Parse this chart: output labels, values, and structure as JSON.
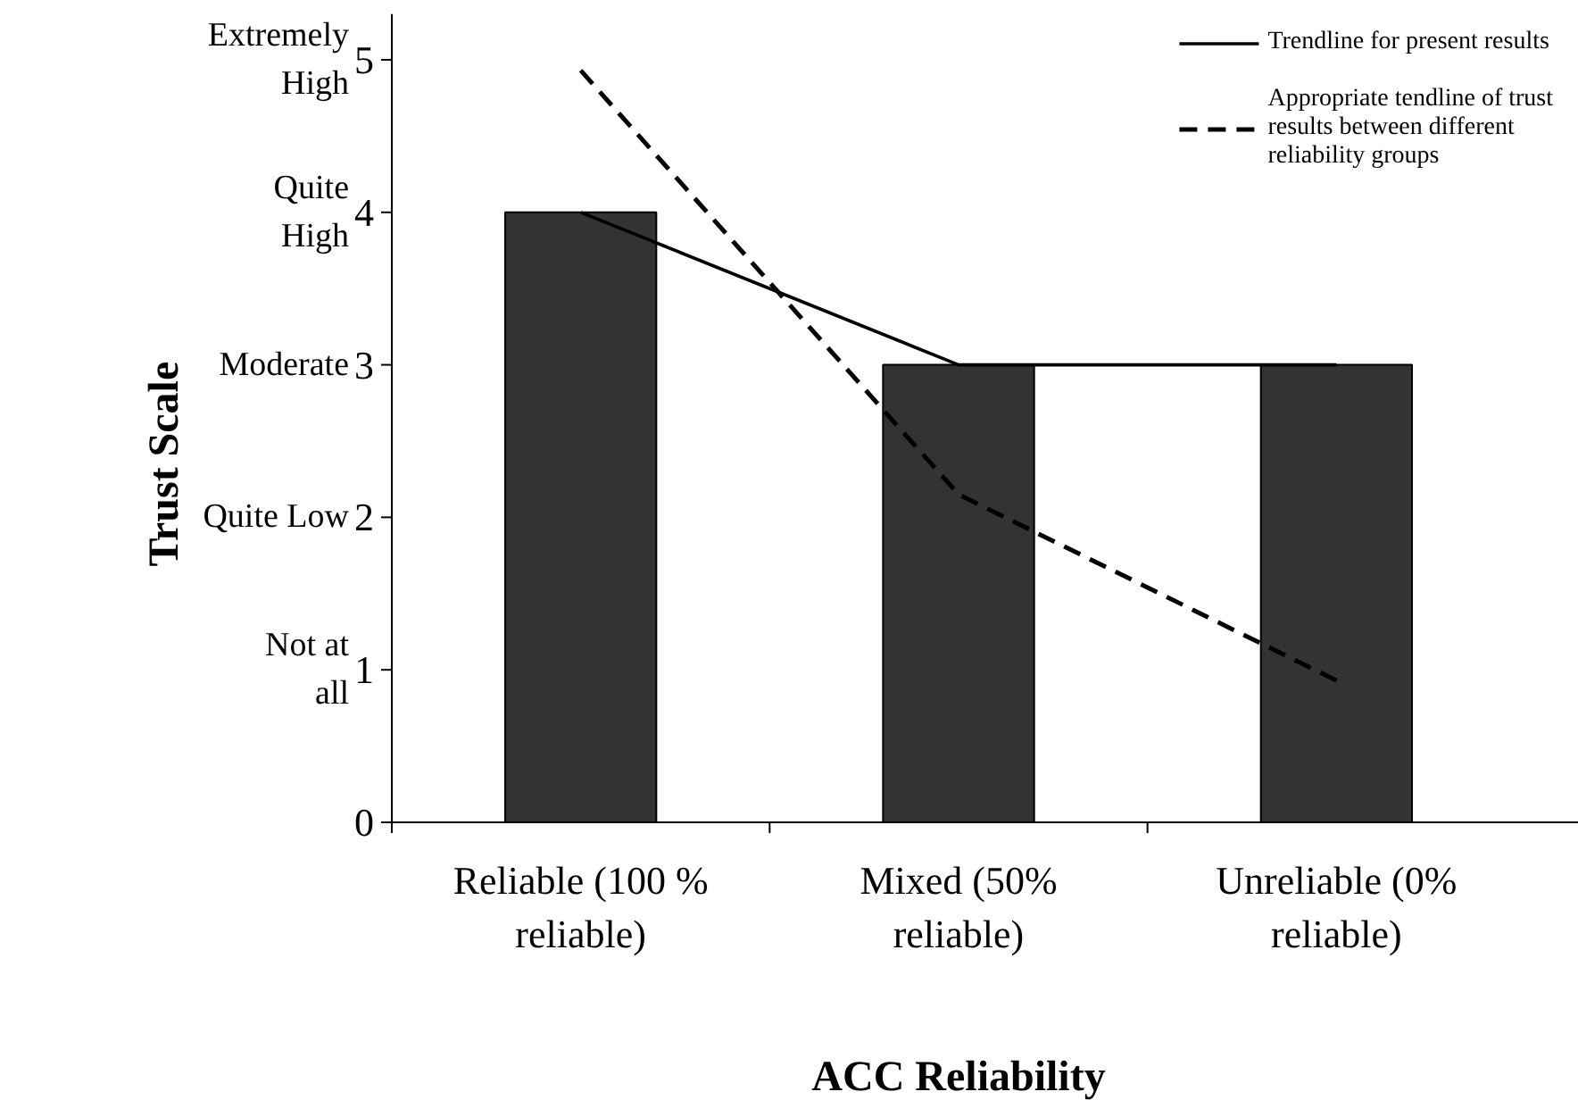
{
  "chart_data": {
    "type": "bar",
    "xlabel": "ACC Reliability",
    "ylabel": "Trust Scale",
    "categories": [
      "Reliable (100 % reliable)",
      "Mixed (50% reliable)",
      "Unreliable (0% reliable)"
    ],
    "series": [
      {
        "color": "#333333",
        "values": [
          4,
          3,
          3
        ]
      },
      {
        "type": "line",
        "name": "Trendline for present results",
        "color": "#000000",
        "line_style": "solid",
        "values": [
          4,
          3,
          3
        ]
      },
      {
        "type": "line",
        "name": "Appropriate tendline of trust results between different reliability groups",
        "color": "#000000",
        "line_style": "dashed",
        "values": [
          4.93,
          2.15,
          0.93
        ]
      }
    ],
    "ylim": [
      0,
      5.3
    ],
    "yticks": [
      0,
      1,
      2,
      3,
      4,
      5
    ],
    "annotations": [
      "Extremely High",
      "Quite High",
      "Moderate",
      "Quite Low",
      "Not at all"
    ],
    "legend": "top right",
    "grid": false
  }
}
